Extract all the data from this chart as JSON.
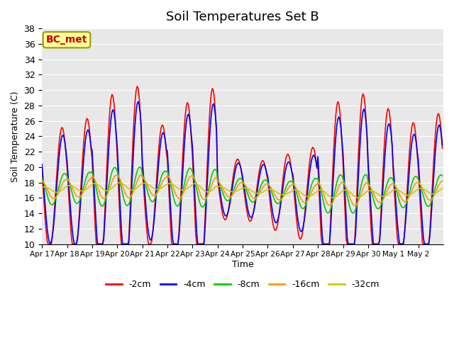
{
  "title": "Soil Temperatures Set B",
  "xlabel": "Time",
  "ylabel": "Soil Temperature (C)",
  "ylim": [
    10,
    38
  ],
  "yticks": [
    10,
    12,
    14,
    16,
    18,
    20,
    22,
    24,
    26,
    28,
    30,
    32,
    34,
    36,
    38
  ],
  "annotation": "BC_met",
  "annotation_color": "#cc0000",
  "annotation_bg": "#ffff99",
  "annotation_border": "#999900",
  "series_colors": [
    "#ff0000",
    "#0000ff",
    "#00cc00",
    "#ff9900",
    "#cccc00"
  ],
  "series_labels": [
    "-2cm",
    "-4cm",
    "-8cm",
    "-16cm",
    "-32cm"
  ],
  "x_tick_labels": [
    "Apr 17",
    "Apr 18",
    "Apr 19",
    "Apr 20",
    "Apr 21",
    "Apr 22",
    "Apr 23",
    "Apr 24",
    "Apr 25",
    "Apr 26",
    "Apr 27",
    "Apr 28",
    "Apr 29",
    "Apr 30",
    "May 1",
    "May 2"
  ],
  "plot_bg": "#e8e8e8",
  "line_width": 1.2
}
